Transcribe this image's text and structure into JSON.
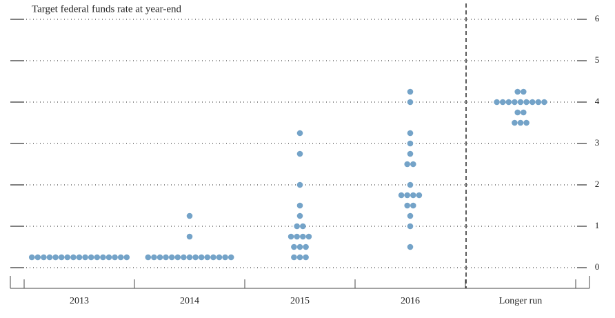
{
  "chart_data": {
    "type": "dot",
    "title": "Target federal funds rate at year-end",
    "categories": [
      "2013",
      "2014",
      "2015",
      "2016",
      "Longer run"
    ],
    "values": [
      [
        0.25,
        0.25,
        0.25,
        0.25,
        0.25,
        0.25,
        0.25,
        0.25,
        0.25,
        0.25,
        0.25,
        0.25,
        0.25,
        0.25,
        0.25,
        0.25,
        0.25
      ],
      [
        0.25,
        0.25,
        0.25,
        0.25,
        0.25,
        0.25,
        0.25,
        0.25,
        0.25,
        0.25,
        0.25,
        0.25,
        0.25,
        0.25,
        0.25,
        0.75,
        1.25
      ],
      [
        0.25,
        0.25,
        0.25,
        0.5,
        0.5,
        0.5,
        0.75,
        0.75,
        0.75,
        0.75,
        1,
        1,
        1.25,
        1.5,
        2,
        2.75,
        3.25
      ],
      [
        0.5,
        1,
        1.25,
        1.5,
        1.5,
        1.75,
        1.75,
        1.75,
        1.75,
        2,
        2.5,
        2.5,
        2.75,
        3,
        3.25,
        4,
        4.25
      ],
      [
        3.5,
        3.5,
        3.5,
        3.75,
        3.75,
        4,
        4,
        4,
        4,
        4,
        4,
        4,
        4,
        4,
        4.25,
        4.25
      ]
    ],
    "color": "#74a3c8",
    "ylim": [
      0,
      6
    ],
    "yticks": [
      0,
      1,
      2,
      3,
      4,
      5,
      6
    ],
    "grid": true
  }
}
